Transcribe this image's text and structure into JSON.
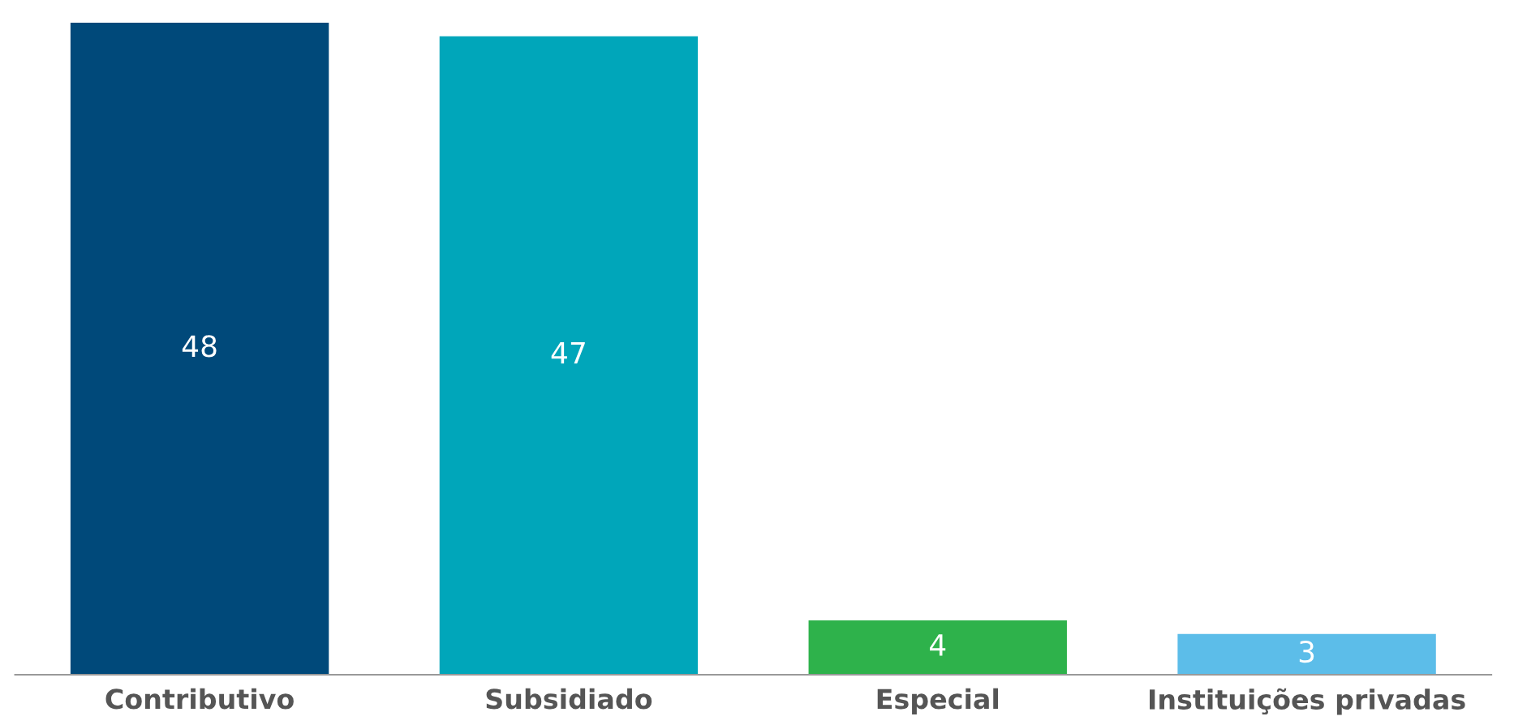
{
  "chart_data": {
    "type": "bar",
    "categories": [
      "Contributivo",
      "Subsidiado",
      "Especial",
      "Instituições privadas"
    ],
    "values": [
      48,
      47,
      4,
      3
    ],
    "colors": [
      "#00497a",
      "#00a6ba",
      "#2eb24b",
      "#5cbde9"
    ],
    "data_labels": true,
    "grid": false,
    "legend": false
  }
}
